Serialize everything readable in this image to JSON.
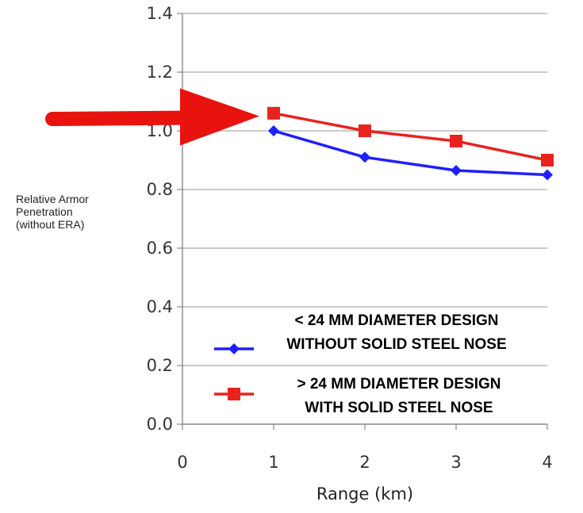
{
  "chart_data": {
    "type": "line",
    "ylabel_lines": [
      "Relative Armor",
      "Penetration",
      "(without ERA)"
    ],
    "xlabel": "Range (km)",
    "x_ticks": [
      0,
      1,
      2,
      3,
      4
    ],
    "y_ticks": [
      "0.0",
      "0.2",
      "0.4",
      "0.6",
      "0.8",
      "1.0",
      "1.2",
      "1.4"
    ],
    "xlim": [
      0,
      4
    ],
    "ylim": [
      0,
      1.4
    ],
    "grid": "horizontal",
    "legend_position": "lower-right",
    "series": [
      {
        "name_lines": [
          "< 24 MM DIAMETER DESIGN",
          "WITHOUT SOLID STEEL NOSE"
        ],
        "color": "#1f1fff",
        "marker": "diamond",
        "x": [
          1,
          2,
          3,
          4
        ],
        "y": [
          1.0,
          0.91,
          0.865,
          0.85
        ]
      },
      {
        "name_lines": [
          "> 24 MM DIAMETER DESIGN",
          "WITH SOLID STEEL NOSE"
        ],
        "color": "#e8231e",
        "marker": "square",
        "x": [
          1,
          2,
          3,
          4
        ],
        "y": [
          1.06,
          1.0,
          0.965,
          0.9
        ]
      }
    ],
    "annotation": {
      "type": "arrow",
      "color": "#e8130e",
      "points_to_x": 1,
      "points_to_y": 1.05
    }
  }
}
